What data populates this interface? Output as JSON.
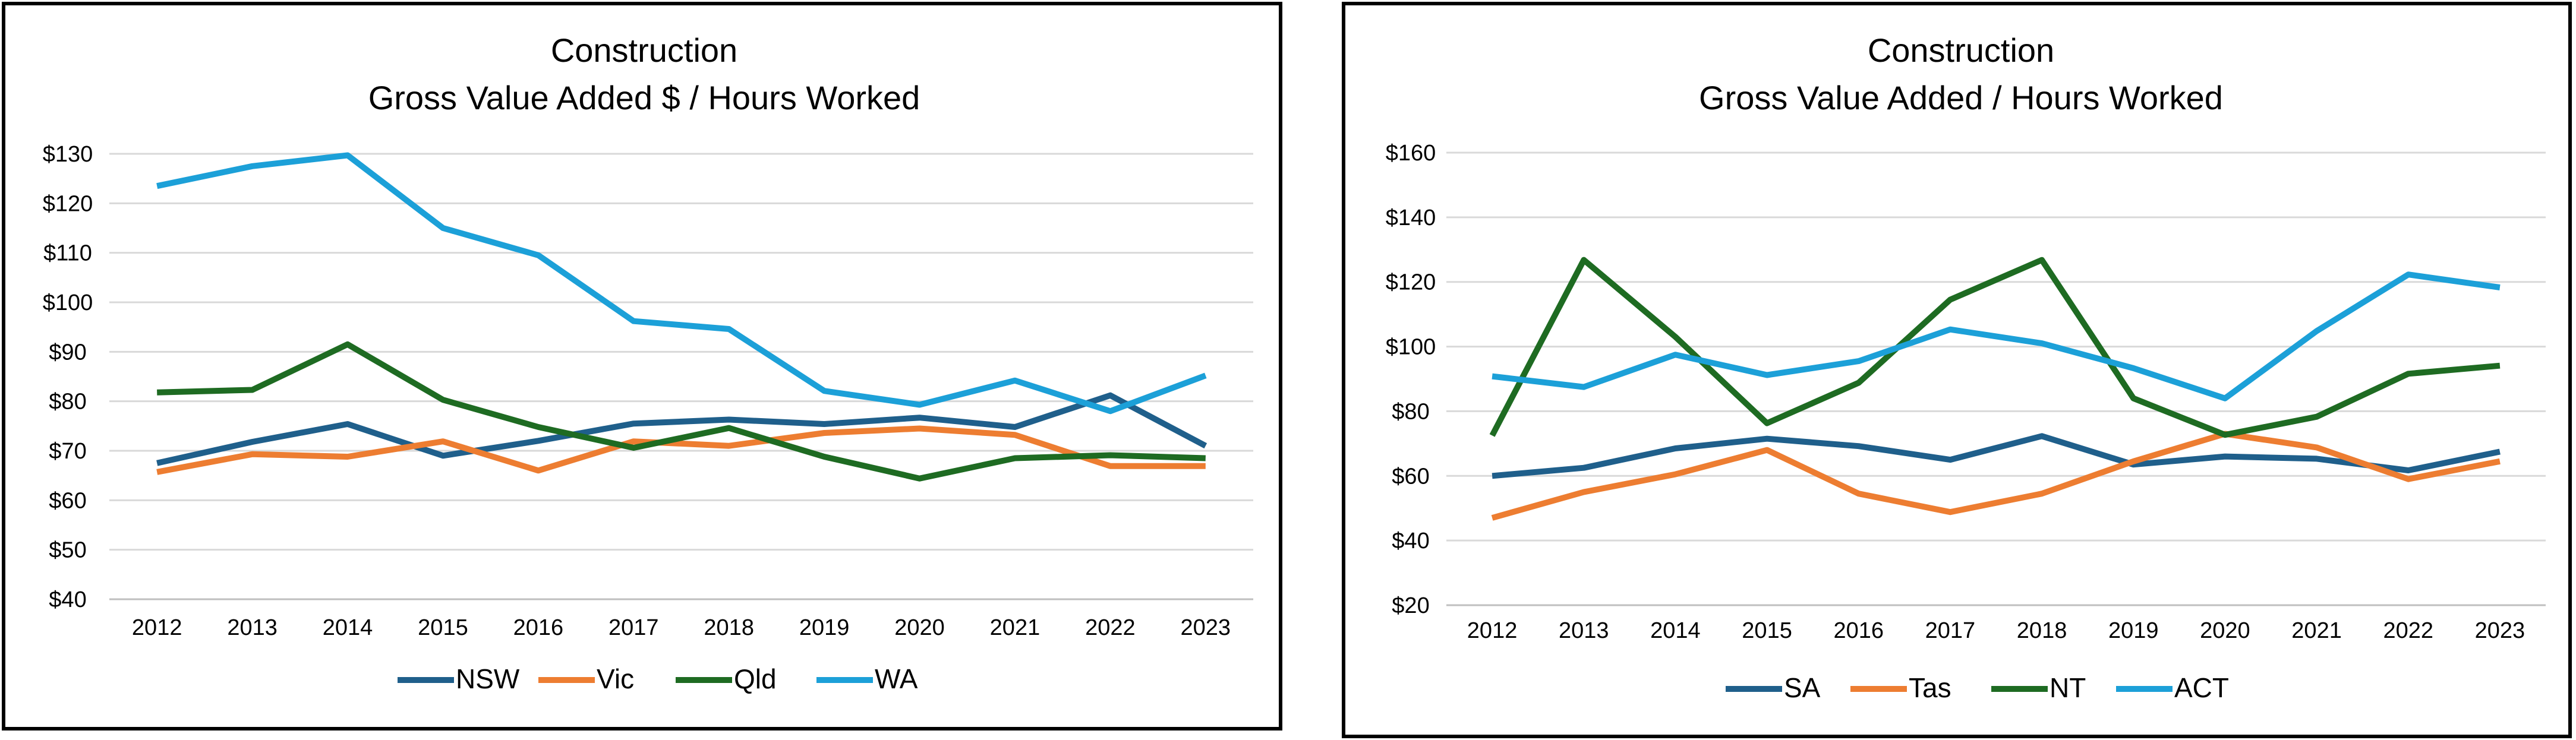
{
  "chart_data": [
    {
      "type": "line",
      "title": "Construction",
      "subtitle": "Gross Value Added $ / Hours Worked",
      "xlabel": "",
      "ylabel": "",
      "x": [
        "2012",
        "2013",
        "2014",
        "2015",
        "2016",
        "2017",
        "2018",
        "2019",
        "2020",
        "2021",
        "2022",
        "2023"
      ],
      "ylim": [
        40,
        130
      ],
      "yticks": [
        "$40",
        "$50",
        "$60",
        "$70",
        "$80",
        "$90",
        "$100",
        "$110",
        "$120",
        "$130"
      ],
      "grid": true,
      "legend": "bottom",
      "series": [
        {
          "name": "NSW",
          "color": "#1f5f8b",
          "values": [
            67.5,
            71.8,
            75.4,
            69.0,
            72.0,
            75.5,
            76.3,
            75.4,
            76.7,
            74.8,
            81.2,
            71.0
          ]
        },
        {
          "name": "Vic",
          "color": "#ed7d31",
          "values": [
            65.7,
            69.3,
            68.8,
            71.9,
            66.0,
            71.9,
            71.0,
            73.6,
            74.5,
            73.2,
            66.9,
            66.9
          ]
        },
        {
          "name": "Qld",
          "color": "#1e6b22",
          "values": [
            81.8,
            82.3,
            91.5,
            80.3,
            74.8,
            70.6,
            74.6,
            68.8,
            64.4,
            68.5,
            69.1,
            68.5
          ]
        },
        {
          "name": "WA",
          "color": "#1ca0d8",
          "values": [
            123.5,
            127.5,
            129.7,
            115.0,
            109.5,
            96.2,
            94.6,
            82.1,
            79.3,
            84.2,
            78.0,
            85.2
          ]
        }
      ]
    },
    {
      "type": "line",
      "title": "Construction",
      "subtitle": "Gross Value Added / Hours Worked",
      "xlabel": "",
      "ylabel": "",
      "x": [
        "2012",
        "2013",
        "2014",
        "2015",
        "2016",
        "2017",
        "2018",
        "2019",
        "2020",
        "2021",
        "2022",
        "2023"
      ],
      "ylim": [
        20,
        160
      ],
      "yticks": [
        "$20",
        "$40",
        "$60",
        "$80",
        "$100",
        "$120",
        "$140",
        "$160"
      ],
      "grid": true,
      "legend": "bottom",
      "series": [
        {
          "name": "SA",
          "color": "#1f5f8b",
          "values": [
            60.0,
            62.5,
            68.5,
            71.5,
            69.2,
            65.0,
            72.3,
            63.5,
            66.0,
            65.3,
            61.7,
            67.5
          ]
        },
        {
          "name": "Tas",
          "color": "#ed7d31",
          "values": [
            47.0,
            55.0,
            60.5,
            68.0,
            54.5,
            48.8,
            54.5,
            64.5,
            73.0,
            68.8,
            59.0,
            64.5
          ]
        },
        {
          "name": "NT",
          "color": "#1e6b22",
          "values": [
            72.5,
            126.8,
            103.0,
            76.3,
            88.8,
            114.5,
            126.8,
            84.0,
            72.7,
            78.3,
            91.6,
            94.1
          ]
        },
        {
          "name": "ACT",
          "color": "#1ca0d8",
          "values": [
            90.8,
            87.5,
            97.5,
            91.2,
            95.5,
            105.3,
            101.0,
            93.3,
            84.0,
            104.8,
            122.3,
            118.3
          ]
        }
      ]
    }
  ]
}
